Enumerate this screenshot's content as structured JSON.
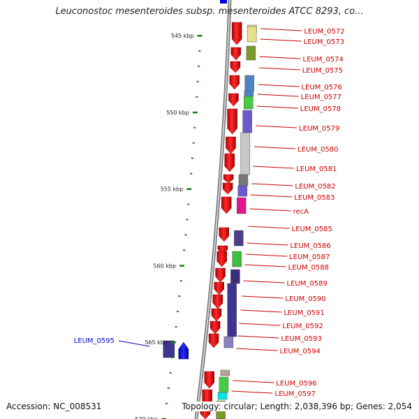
{
  "title": "Leuconostoc mesenteroides subsp. mesenteroides ATCC 8293, co...",
  "accession": "Accession: NC_008531",
  "summary": "Topology: circular; Length: 2,038,396 bp; Genes: 2,054",
  "colors": {
    "gene_label": "#cc0000",
    "highlight_label": "#0000cc",
    "cds": "#ff0000",
    "tick": "#1a7a1a",
    "backbone": "#888888"
  },
  "scale_ticks": [
    {
      "label": "545 kbp",
      "kbp": 545
    },
    {
      "label": "550 kbp",
      "kbp": 550
    },
    {
      "label": "555 kbp",
      "kbp": 555
    },
    {
      "label": "560 kbp",
      "kbp": 560
    },
    {
      "label": "565 kbp",
      "kbp": 565
    },
    {
      "label": "570 kbp",
      "kbp": 570
    }
  ],
  "genes": [
    {
      "name": "LEUM_0572"
    },
    {
      "name": "LEUM_0573"
    },
    {
      "name": "LEUM_0574"
    },
    {
      "name": "LEUM_0575"
    },
    {
      "name": "LEUM_0576"
    },
    {
      "name": "LEUM_0577"
    },
    {
      "name": "LEUM_0578"
    },
    {
      "name": "LEUM_0579"
    },
    {
      "name": "LEUM_0580"
    },
    {
      "name": "LEUM_0581"
    },
    {
      "name": "LEUM_0582"
    },
    {
      "name": "LEUM_0583"
    },
    {
      "name": "recA"
    },
    {
      "name": "LEUM_0585"
    },
    {
      "name": "LEUM_0586"
    },
    {
      "name": "LEUM_0587"
    },
    {
      "name": "LEUM_0588"
    },
    {
      "name": "LEUM_0589"
    },
    {
      "name": "LEUM_0590"
    },
    {
      "name": "LEUM_0591"
    },
    {
      "name": "LEUM_0592"
    },
    {
      "name": "LEUM_0593"
    },
    {
      "name": "LEUM_0594"
    },
    {
      "name": "LEUM_0595",
      "highlight": true
    },
    {
      "name": "LEUM_0596"
    },
    {
      "name": "LEUM_0597"
    }
  ]
}
